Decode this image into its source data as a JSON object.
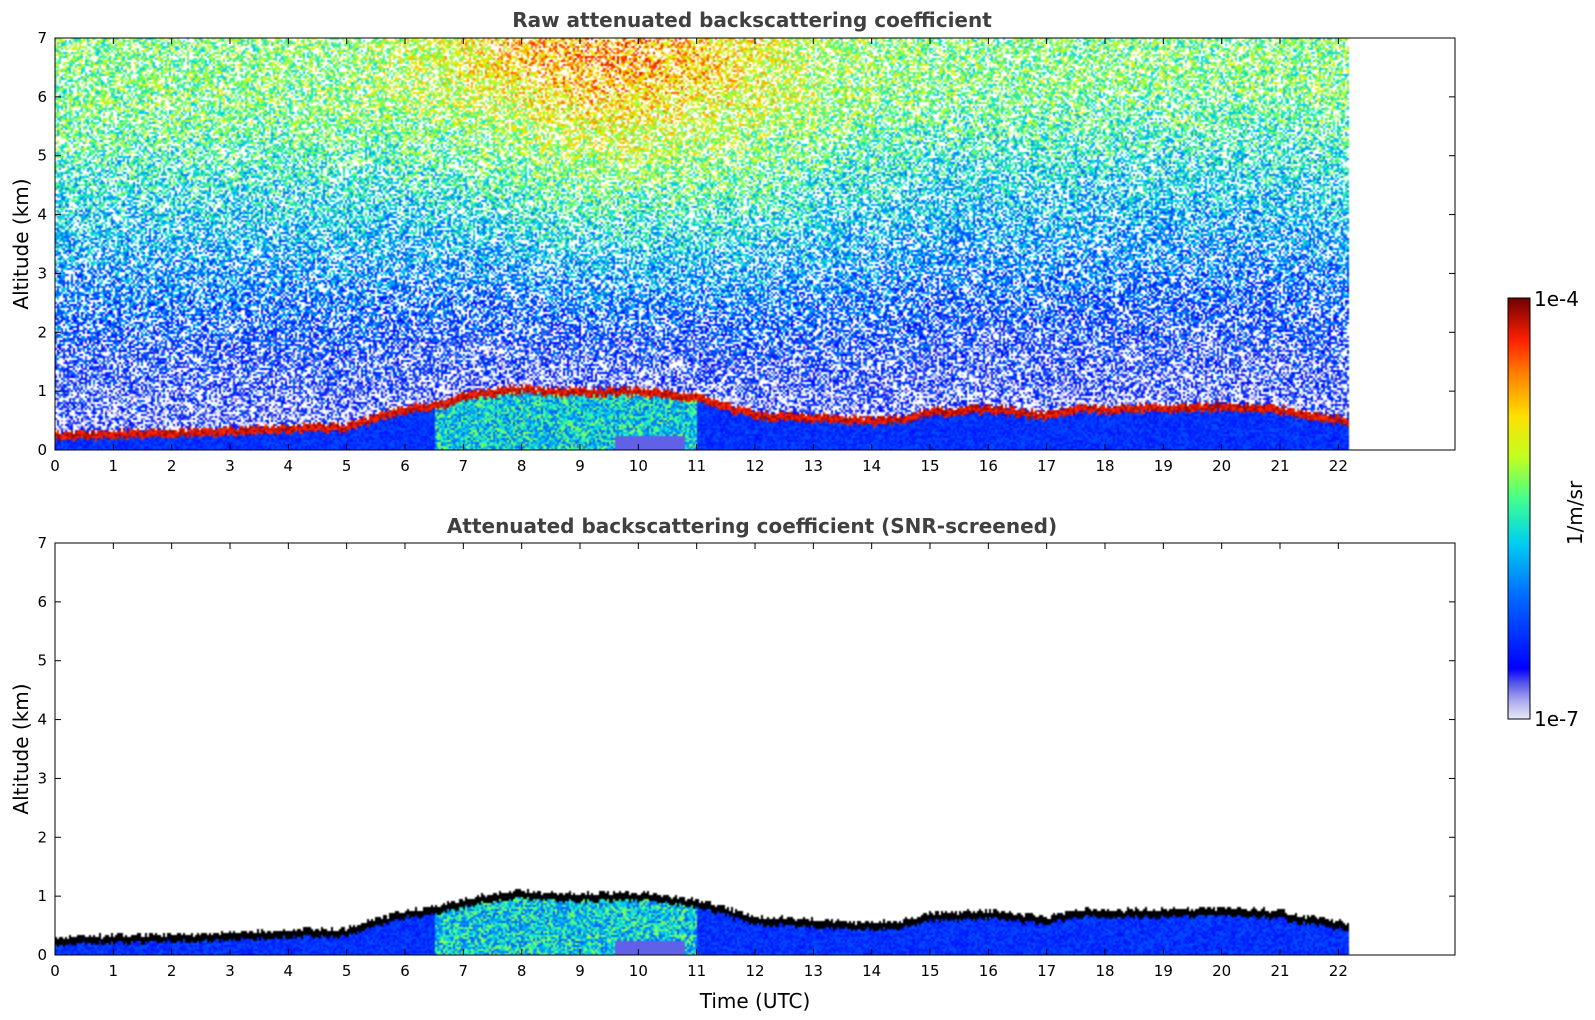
{
  "chart_data": [
    {
      "type": "heatmap",
      "title": "Raw attenuated backscattering coefficient",
      "xlabel": "",
      "ylabel": "Altitude (km)",
      "xlim": [
        0,
        24
      ],
      "ylim": [
        0,
        7
      ],
      "x_ticks": [
        0,
        1,
        2,
        3,
        4,
        5,
        6,
        7,
        8,
        9,
        10,
        11,
        12,
        13,
        14,
        15,
        16,
        17,
        18,
        19,
        20,
        21,
        22
      ],
      "y_ticks": [
        0,
        1,
        2,
        3,
        4,
        5,
        6,
        7
      ],
      "data_end_time": 22.2,
      "screened": false,
      "layer_top_km": [
        [
          0,
          0.25
        ],
        [
          1,
          0.28
        ],
        [
          2,
          0.3
        ],
        [
          3,
          0.32
        ],
        [
          4,
          0.38
        ],
        [
          5,
          0.4
        ],
        [
          5.5,
          0.55
        ],
        [
          6,
          0.7
        ],
        [
          6.5,
          0.75
        ],
        [
          7,
          0.9
        ],
        [
          7.5,
          1.0
        ],
        [
          8,
          1.05
        ],
        [
          8.5,
          1.0
        ],
        [
          9,
          1.0
        ],
        [
          9.5,
          1.0
        ],
        [
          10,
          1.0
        ],
        [
          10.5,
          0.95
        ],
        [
          11,
          0.9
        ],
        [
          11.5,
          0.75
        ],
        [
          12,
          0.6
        ],
        [
          13,
          0.55
        ],
        [
          14,
          0.5
        ],
        [
          14.6,
          0.55
        ],
        [
          15,
          0.65
        ],
        [
          16,
          0.7
        ],
        [
          17,
          0.6
        ],
        [
          17.6,
          0.72
        ],
        [
          18,
          0.7
        ],
        [
          18.5,
          0.72
        ],
        [
          19,
          0.72
        ],
        [
          20,
          0.75
        ],
        [
          21,
          0.7
        ],
        [
          21.5,
          0.6
        ],
        [
          22.2,
          0.5
        ]
      ]
    },
    {
      "type": "heatmap",
      "title": "Attenuated backscattering coefficient (SNR-screened)",
      "xlabel": "Time (UTC)",
      "ylabel": "Altitude (km)",
      "xlim": [
        0,
        24
      ],
      "ylim": [
        0,
        7
      ],
      "x_ticks": [
        0,
        1,
        2,
        3,
        4,
        5,
        6,
        7,
        8,
        9,
        10,
        11,
        12,
        13,
        14,
        15,
        16,
        17,
        18,
        19,
        20,
        21,
        22
      ],
      "y_ticks": [
        0,
        1,
        2,
        3,
        4,
        5,
        6,
        7
      ],
      "data_end_time": 22.2,
      "screened": true,
      "layer_top_km": [
        [
          0,
          0.25
        ],
        [
          1,
          0.28
        ],
        [
          2,
          0.3
        ],
        [
          3,
          0.32
        ],
        [
          4,
          0.38
        ],
        [
          5,
          0.4
        ],
        [
          5.5,
          0.55
        ],
        [
          6,
          0.7
        ],
        [
          6.5,
          0.75
        ],
        [
          7,
          0.9
        ],
        [
          7.5,
          1.0
        ],
        [
          8,
          1.05
        ],
        [
          8.5,
          1.0
        ],
        [
          9,
          1.0
        ],
        [
          9.5,
          1.0
        ],
        [
          10,
          1.0
        ],
        [
          10.5,
          0.95
        ],
        [
          11,
          0.9
        ],
        [
          11.5,
          0.75
        ],
        [
          12,
          0.6
        ],
        [
          13,
          0.55
        ],
        [
          14,
          0.5
        ],
        [
          14.6,
          0.55
        ],
        [
          15,
          0.65
        ],
        [
          16,
          0.7
        ],
        [
          17,
          0.6
        ],
        [
          17.6,
          0.72
        ],
        [
          18,
          0.7
        ],
        [
          18.5,
          0.72
        ],
        [
          19,
          0.72
        ],
        [
          20,
          0.75
        ],
        [
          21,
          0.7
        ],
        [
          21.5,
          0.6
        ],
        [
          22.2,
          0.5
        ]
      ]
    }
  ],
  "colorbar": {
    "label": "1/m/sr",
    "max_label": "1e-4",
    "min_label": "1e-7",
    "colormap": "jet",
    "colors": [
      "#e8e8f8",
      "#c8c8f0",
      "#a0a0ec",
      "#7878e8",
      "#4848e8",
      "#0000ff",
      "#0050ff",
      "#00a0ff",
      "#00e0e0",
      "#40ff80",
      "#c0ff00",
      "#ffe000",
      "#ff8000",
      "#ff2000",
      "#a00000",
      "#700000"
    ]
  }
}
